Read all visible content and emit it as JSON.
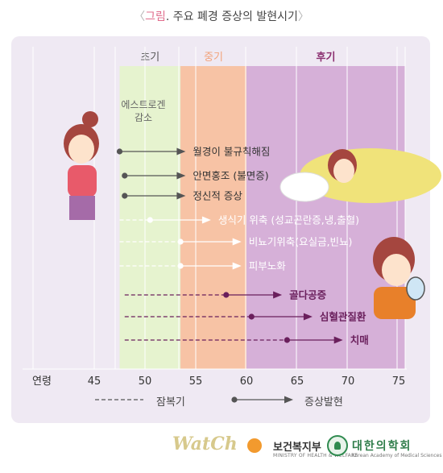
{
  "title": {
    "open_bracket": "〈",
    "highlight": "그림",
    "text": ". 주요 폐경 증상의 발현시기",
    "close_bracket": "〉"
  },
  "chart_data": {
    "type": "timeline",
    "x_axis": {
      "label": "연령",
      "ticks": [
        45,
        50,
        55,
        60,
        65,
        70,
        75
      ],
      "range": [
        43,
        76
      ]
    },
    "phases": [
      {
        "label": "초기",
        "start": 47.5,
        "end": 53.5,
        "color": "#e6f3cf",
        "label_color": "#555555"
      },
      {
        "label": "중기",
        "start": 53.5,
        "end": 60,
        "color": "#f7c3a5",
        "label_color": "#f2a27a"
      },
      {
        "label": "후기",
        "start": 60,
        "end": 76,
        "color": "#d6b0d8",
        "label_color": "#8b2f70"
      }
    ],
    "annotation": "에스트로겐\n감소",
    "symptoms": [
      {
        "label": "월경이 불규칙해짐",
        "latent_start": null,
        "onset": 47.5,
        "arrow_end": 54,
        "color": "#555555",
        "text_color": "#333333"
      },
      {
        "label": "안면홍조 (불면증)",
        "latent_start": null,
        "onset": 48,
        "arrow_end": 54,
        "color": "#555555",
        "text_color": "#333333"
      },
      {
        "label": "정신적 증상",
        "latent_start": null,
        "onset": 48,
        "arrow_end": 54,
        "color": "#555555",
        "text_color": "#333333"
      },
      {
        "label": "생식기 위축 (성교곤란증,냉,출혈)",
        "latent_start": 47.5,
        "onset": 50.5,
        "arrow_end": 56.5,
        "color": "#ffffff",
        "text_color": "#ffffff"
      },
      {
        "label": "비뇨기위축(요실금,빈뇨)",
        "latent_start": 47.5,
        "onset": 53.5,
        "arrow_end": 59.5,
        "color": "#ffffff",
        "text_color": "#ffffff"
      },
      {
        "label": "피부노화",
        "latent_start": 47.5,
        "onset": 53.5,
        "arrow_end": 59.5,
        "color": "#ffffff",
        "text_color": "#ffffff"
      },
      {
        "label": "골다공증",
        "latent_start": 48,
        "onset": 58,
        "arrow_end": 63.5,
        "color": "#6a1f5c",
        "text_color": "#6a1f5c"
      },
      {
        "label": "심혈관질환",
        "latent_start": 48,
        "onset": 60.5,
        "arrow_end": 66.5,
        "color": "#6a1f5c",
        "text_color": "#6a1f5c"
      },
      {
        "label": "치매",
        "latent_start": 48,
        "onset": 64,
        "arrow_end": 69.5,
        "color": "#6a1f5c",
        "text_color": "#6a1f5c"
      }
    ],
    "legend": [
      {
        "style": "dashed",
        "label": "잠복기"
      },
      {
        "style": "dot-arrow",
        "label": "증상발현"
      }
    ]
  },
  "footer": {
    "logo1": "WatCh",
    "org1": "보건복지부",
    "org1_sub": "MINISTRY OF HEALTH & WELFARE",
    "org2": "대한의학회",
    "org2_sub": "Korean Academy of Medical Sciences"
  },
  "colors": {
    "panel_bg": "#efe9f3",
    "grid": "#ffffff",
    "dark_arrow": "#555555",
    "late_arrow": "#6a1f5c"
  }
}
